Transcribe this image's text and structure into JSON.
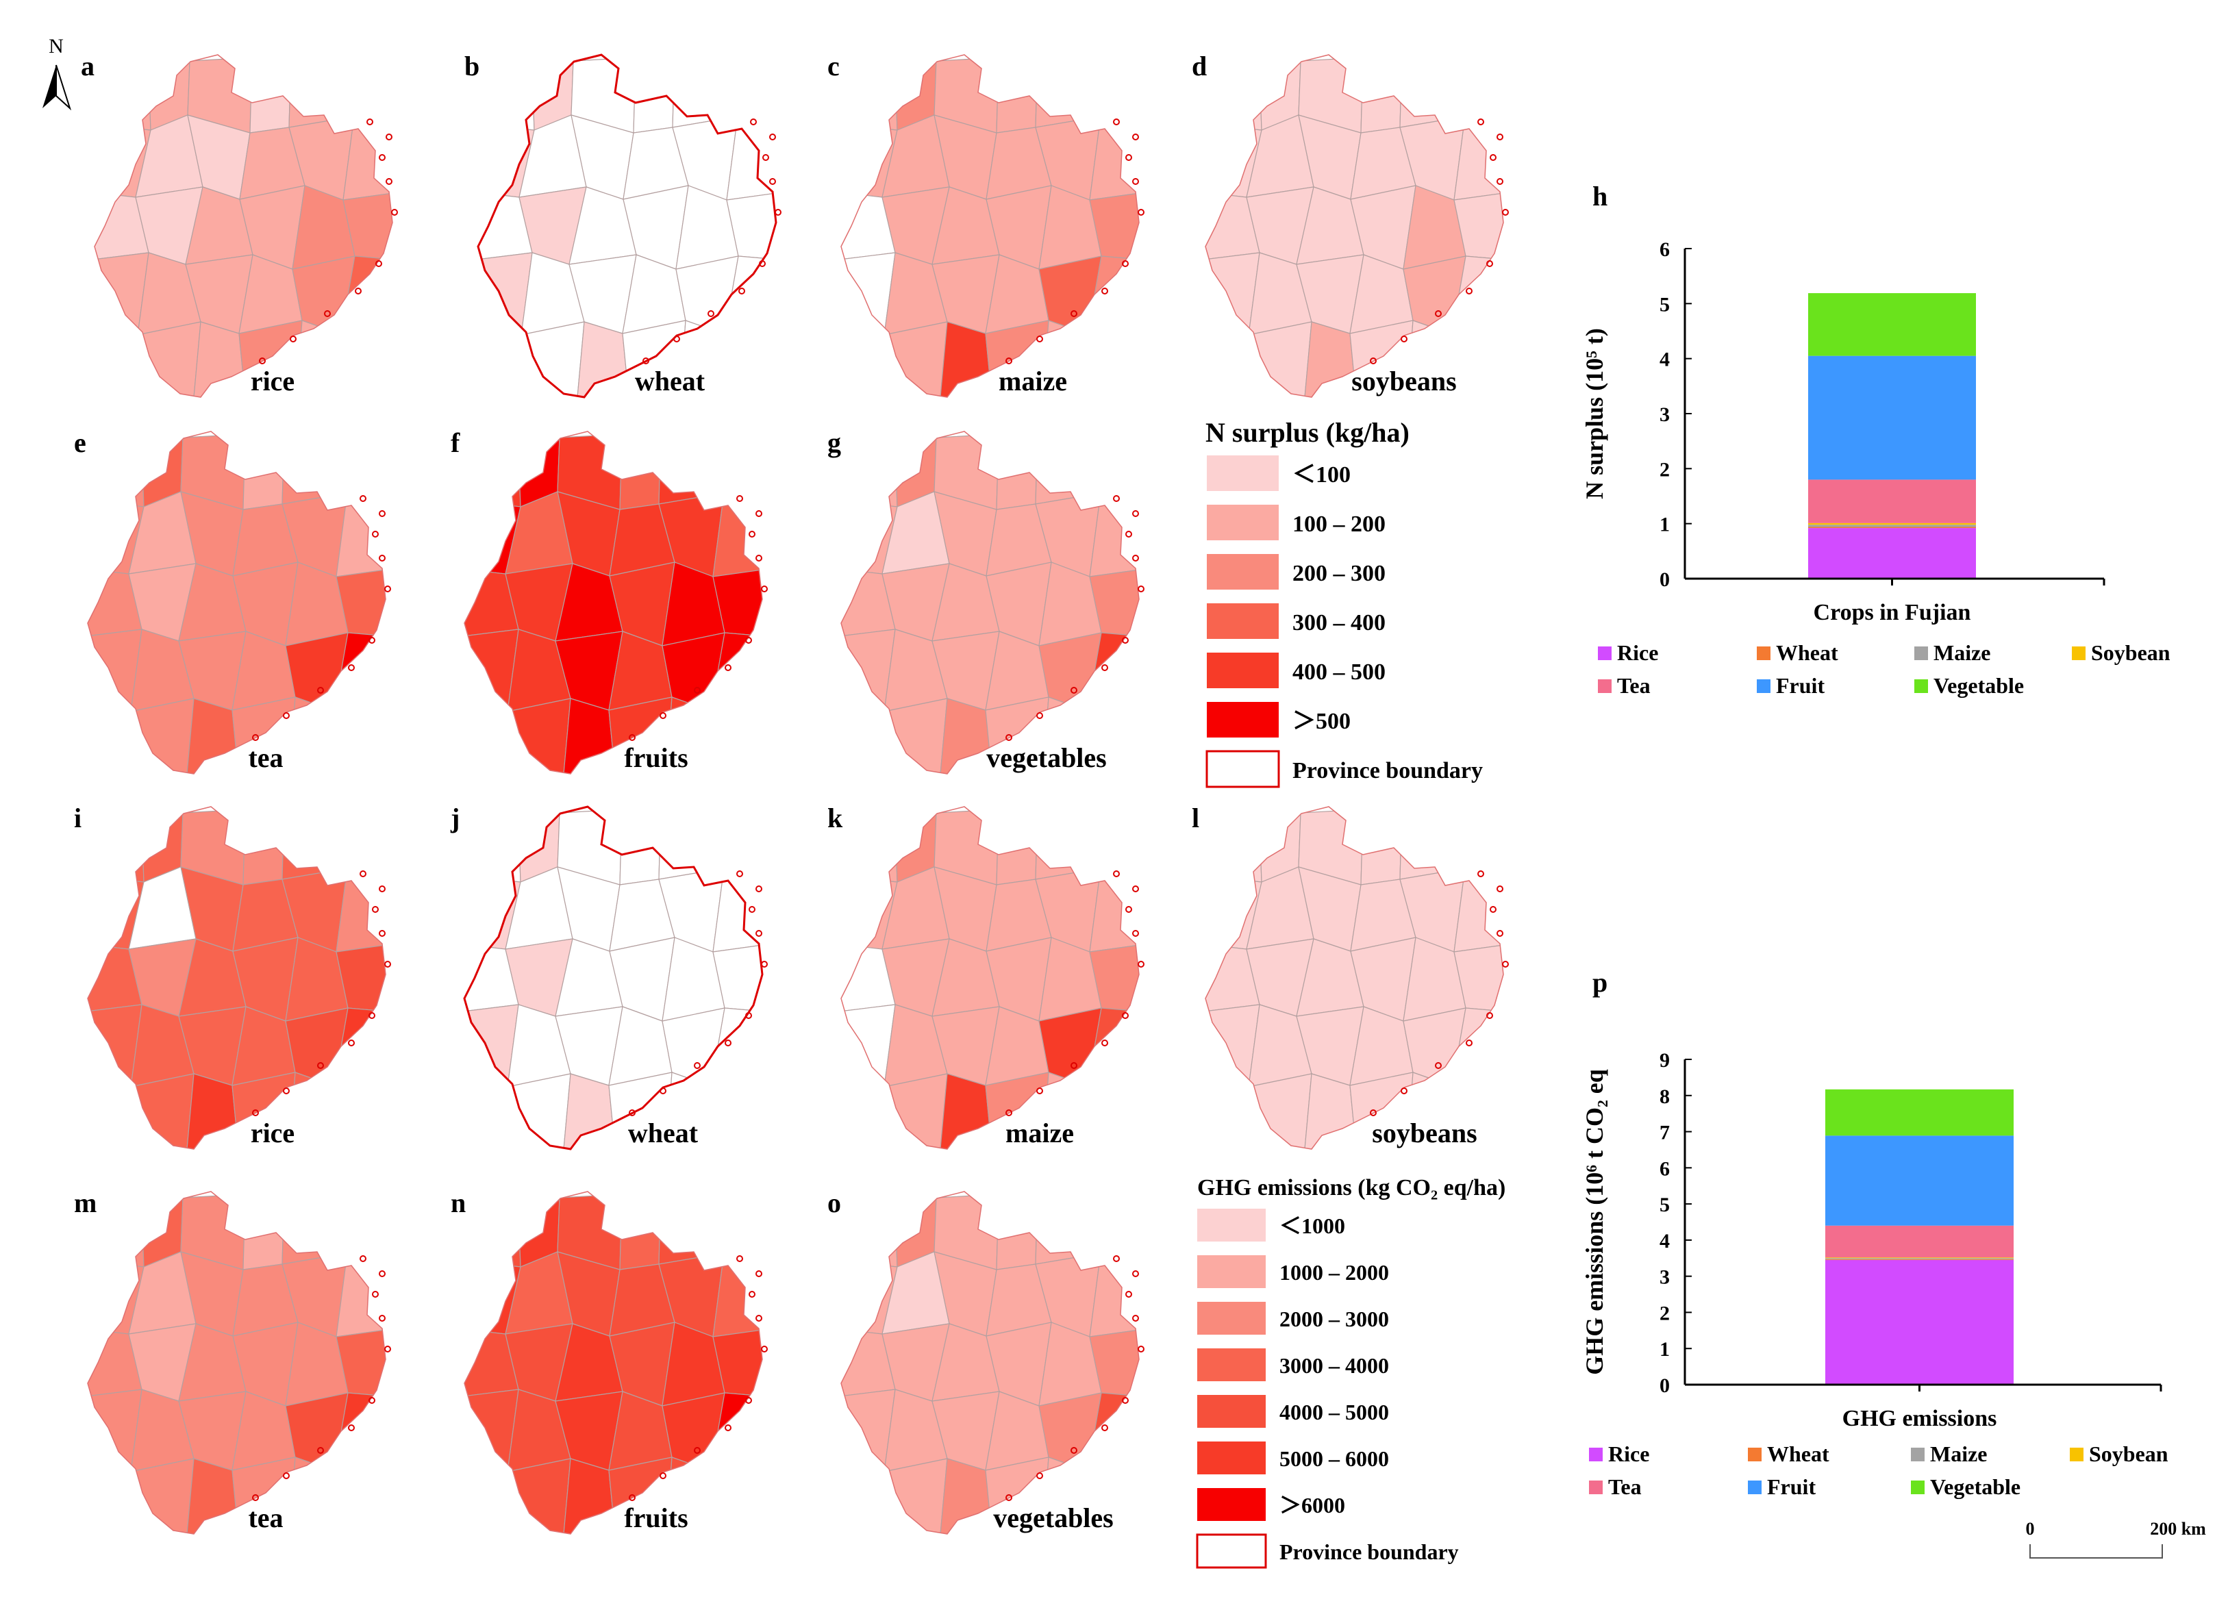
{
  "north_arrow": {
    "label": "N"
  },
  "maps": [
    {
      "id": "a",
      "caption": "rice",
      "metric": "N surplus",
      "class_by_region": [
        1,
        1,
        1,
        0,
        1,
        1,
        1,
        0,
        0,
        1,
        1,
        1,
        0,
        0,
        1,
        1,
        2,
        2,
        1,
        1,
        1,
        1,
        2,
        3,
        1,
        1,
        1,
        2,
        1,
        1
      ]
    },
    {
      "id": "b",
      "caption": "wheat",
      "metric": "N surplus",
      "class_by_region": [
        -1,
        0,
        -1,
        -1,
        -1,
        -1,
        0,
        -1,
        -1,
        -1,
        -1,
        -1,
        -1,
        0,
        -1,
        -1,
        -1,
        -1,
        0,
        -1,
        -1,
        -1,
        -1,
        -1,
        -1,
        -1,
        0,
        -1,
        -1,
        -1
      ]
    },
    {
      "id": "c",
      "caption": "maize",
      "metric": "N surplus",
      "class_by_region": [
        1,
        2,
        1,
        1,
        1,
        1,
        1,
        1,
        1,
        1,
        1,
        1,
        -1,
        1,
        1,
        1,
        1,
        2,
        -1,
        1,
        1,
        1,
        3,
        2,
        1,
        1,
        4,
        2,
        1,
        1
      ]
    },
    {
      "id": "d",
      "caption": "soybeans",
      "metric": "N surplus",
      "class_by_region": [
        0,
        0,
        0,
        0,
        0,
        0,
        0,
        0,
        0,
        0,
        0,
        0,
        0,
        0,
        0,
        0,
        1,
        0,
        0,
        0,
        0,
        0,
        1,
        0,
        0,
        0,
        1,
        0,
        0,
        0
      ]
    },
    {
      "id": "e",
      "caption": "tea",
      "metric": "N surplus",
      "class_by_region": [
        2,
        3,
        2,
        1,
        2,
        2,
        2,
        1,
        2,
        2,
        2,
        1,
        2,
        1,
        2,
        2,
        2,
        3,
        2,
        2,
        2,
        2,
        4,
        5,
        2,
        2,
        3,
        2,
        2,
        1
      ]
    },
    {
      "id": "f",
      "caption": "fruits",
      "metric": "N surplus",
      "class_by_region": [
        4,
        5,
        4,
        3,
        4,
        4,
        5,
        3,
        4,
        4,
        4,
        3,
        4,
        4,
        5,
        4,
        5,
        5,
        4,
        4,
        5,
        4,
        5,
        5,
        4,
        4,
        5,
        4,
        4,
        3
      ]
    },
    {
      "id": "g",
      "caption": "vegetables",
      "metric": "N surplus",
      "class_by_region": [
        1,
        2,
        1,
        1,
        1,
        1,
        1,
        0,
        1,
        1,
        1,
        1,
        1,
        1,
        1,
        1,
        1,
        2,
        1,
        1,
        1,
        1,
        2,
        4,
        1,
        1,
        2,
        1,
        1,
        1
      ]
    },
    {
      "id": "i",
      "caption": "rice",
      "metric": "GHG emissions",
      "class_by_region": [
        3,
        3,
        2,
        2,
        3,
        3,
        3,
        -1,
        3,
        3,
        3,
        2,
        3,
        2,
        3,
        3,
        3,
        4,
        3,
        3,
        3,
        3,
        4,
        5,
        3,
        3,
        5,
        3,
        3,
        2
      ]
    },
    {
      "id": "j",
      "caption": "wheat",
      "metric": "GHG emissions",
      "class_by_region": [
        -1,
        0,
        -1,
        -1,
        -1,
        -1,
        0,
        -1,
        -1,
        -1,
        -1,
        -1,
        -1,
        0,
        -1,
        -1,
        -1,
        -1,
        0,
        -1,
        -1,
        -1,
        -1,
        -1,
        -1,
        -1,
        0,
        -1,
        -1,
        -1
      ]
    },
    {
      "id": "k",
      "caption": "maize",
      "metric": "GHG emissions",
      "class_by_region": [
        1,
        2,
        1,
        1,
        1,
        1,
        1,
        1,
        1,
        1,
        1,
        1,
        -1,
        1,
        1,
        1,
        1,
        2,
        -1,
        1,
        1,
        1,
        5,
        4,
        1,
        1,
        5,
        2,
        1,
        1
      ]
    },
    {
      "id": "l",
      "caption": "soybeans",
      "metric": "GHG emissions",
      "class_by_region": [
        0,
        0,
        0,
        0,
        0,
        0,
        0,
        0,
        0,
        0,
        0,
        0,
        0,
        0,
        0,
        0,
        0,
        0,
        0,
        0,
        0,
        0,
        0,
        0,
        0,
        0,
        0,
        0,
        0,
        0
      ]
    },
    {
      "id": "m",
      "caption": "tea",
      "metric": "GHG emissions",
      "class_by_region": [
        2,
        3,
        2,
        1,
        2,
        2,
        2,
        1,
        2,
        2,
        2,
        1,
        2,
        1,
        2,
        2,
        2,
        3,
        2,
        2,
        2,
        2,
        4,
        5,
        2,
        2,
        3,
        2,
        2,
        1
      ]
    },
    {
      "id": "n",
      "caption": "fruits",
      "metric": "GHG emissions",
      "class_by_region": [
        4,
        5,
        4,
        3,
        4,
        4,
        5,
        3,
        4,
        4,
        4,
        3,
        4,
        4,
        5,
        4,
        5,
        5,
        4,
        4,
        5,
        4,
        5,
        6,
        4,
        4,
        5,
        4,
        4,
        3
      ]
    },
    {
      "id": "o",
      "caption": "vegetables",
      "metric": "GHG emissions",
      "class_by_region": [
        1,
        2,
        1,
        1,
        1,
        1,
        1,
        0,
        1,
        1,
        1,
        1,
        1,
        1,
        1,
        1,
        1,
        2,
        1,
        1,
        1,
        1,
        2,
        4,
        1,
        1,
        2,
        1,
        1,
        1
      ]
    }
  ],
  "legend_n": {
    "title": "N surplus (kg/ha)",
    "items": [
      "＜100",
      "100 – 200",
      "200 – 300",
      "300 – 400",
      "400 – 500",
      "＞500"
    ],
    "colors": [
      "#fcd1d1",
      "#fbaaa2",
      "#f98a7c",
      "#f8644f",
      "#f73b28",
      "#f70000"
    ],
    "boundary": "Province boundary"
  },
  "legend_ghg": {
    "title": "GHG emissions (kg CO₂ eq/ha)",
    "items": [
      "＜1000",
      "1000 – 2000",
      "2000 – 3000",
      "3000 – 4000",
      "4000 – 5000",
      "5000 – 6000",
      "＞6000"
    ],
    "colors": [
      "#fcd1d1",
      "#fbaaa2",
      "#f98a7c",
      "#f8644f",
      "#f6503b",
      "#f73b28",
      "#f70000"
    ],
    "boundary": "Province boundary"
  },
  "boundary_color": "#dd0000",
  "chart_data": [
    {
      "panel": "h",
      "type": "bar",
      "stacked": true,
      "categories": [
        "Crops in Fujian"
      ],
      "ylabel": "N surplus (10⁵ t)",
      "ylim": [
        0,
        6
      ],
      "yticks": [
        "0",
        "1",
        "2",
        "3",
        "4",
        "5",
        "6"
      ],
      "series": [
        {
          "name": "Rice",
          "color": "#d24bff",
          "values": [
            0.92
          ]
        },
        {
          "name": "Wheat",
          "color": "#f47a31",
          "values": [
            0.02
          ]
        },
        {
          "name": "Maize",
          "color": "#a3a3a3",
          "values": [
            0.04
          ]
        },
        {
          "name": "Soybean",
          "color": "#f8c200",
          "values": [
            0.03
          ]
        },
        {
          "name": "Tea",
          "color": "#f36d8d",
          "values": [
            0.79
          ]
        },
        {
          "name": "Fruit",
          "color": "#3d97ff",
          "values": [
            2.25
          ]
        },
        {
          "name": "Vegetable",
          "color": "#6ae31c",
          "values": [
            1.14
          ]
        }
      ]
    },
    {
      "panel": "p",
      "type": "bar",
      "stacked": true,
      "categories": [
        "GHG emissions"
      ],
      "ylabel": "GHG emissions (10⁶ t CO₂ eq",
      "ylim": [
        0,
        9
      ],
      "yticks": [
        "0",
        "1",
        "2",
        "3",
        "4",
        "5",
        "6",
        "7",
        "8",
        "9"
      ],
      "series": [
        {
          "name": "Rice",
          "color": "#d24bff",
          "values": [
            3.45
          ]
        },
        {
          "name": "Wheat",
          "color": "#f47a31",
          "values": [
            0.02
          ]
        },
        {
          "name": "Maize",
          "color": "#a3a3a3",
          "values": [
            0.03
          ]
        },
        {
          "name": "Soybean",
          "color": "#f8c200",
          "values": [
            0.02
          ]
        },
        {
          "name": "Tea",
          "color": "#f36d8d",
          "values": [
            0.88
          ]
        },
        {
          "name": "Fruit",
          "color": "#3d97ff",
          "values": [
            2.49
          ]
        },
        {
          "name": "Vegetable",
          "color": "#6ae31c",
          "values": [
            1.28
          ]
        }
      ]
    }
  ],
  "scale_bar": {
    "left_label": "0",
    "right_label": "200 km"
  }
}
